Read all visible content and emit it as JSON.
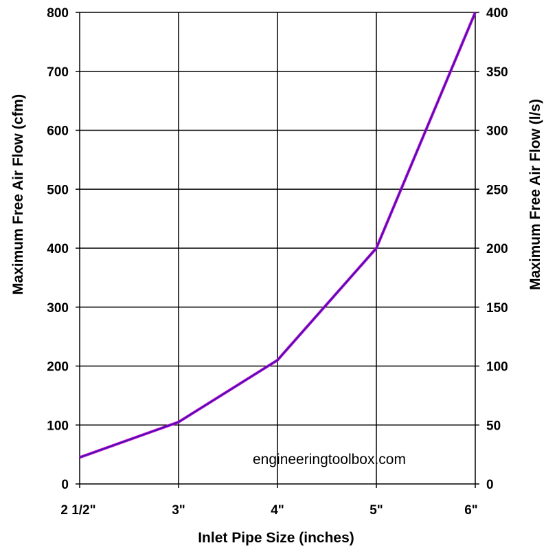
{
  "chart_data": {
    "type": "line",
    "categories": [
      "2 1/2\"",
      "3\"",
      "4\"",
      "5\"",
      "6\""
    ],
    "series": [
      {
        "values": [
          45,
          105,
          210,
          400,
          800
        ],
        "color": "#cc00cc",
        "inner_color": "#1f1fb0"
      }
    ],
    "xlabel": "Inlet Pipe Size (inches)",
    "ylabel": "Maximum Free Air Flow (cfm)",
    "ylabel_right": "Maximum Free Air Flow (l/s)",
    "ylim": [
      0,
      800
    ],
    "yticks": [
      0,
      100,
      200,
      300,
      400,
      500,
      600,
      700,
      800
    ],
    "ylim_right": [
      0,
      400
    ],
    "yticks_right": [
      0,
      50,
      100,
      150,
      200,
      250,
      300,
      350,
      400
    ],
    "grid": true,
    "annotation": "engineeringtoolbox.com"
  }
}
